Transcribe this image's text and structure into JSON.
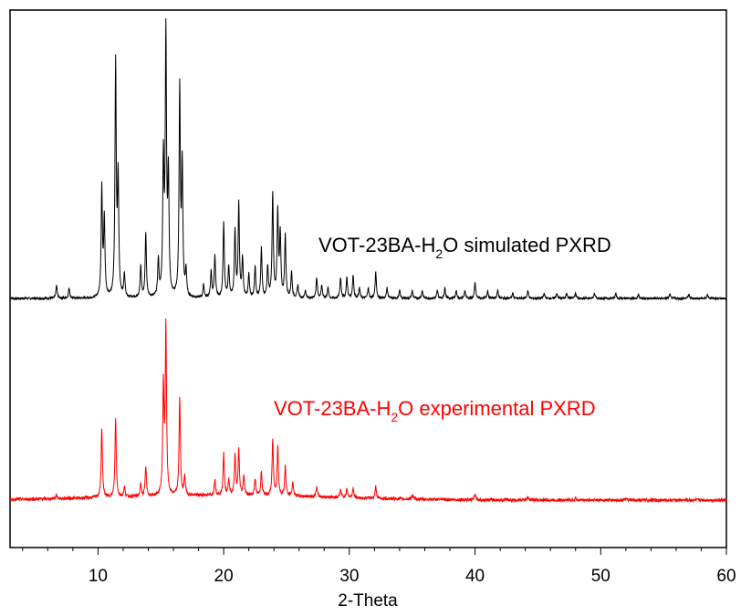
{
  "chart_data": {
    "type": "line",
    "xlabel": "2-Theta",
    "ylabel": "",
    "xlim": [
      3,
      60
    ],
    "x_ticks": [
      10,
      20,
      30,
      40,
      50,
      60
    ],
    "x_minor_step": 2,
    "y_ticks_shown": false,
    "grid": false,
    "legend": "none (series labelled directly on plot)",
    "series": [
      {
        "label_parts": {
          "pre": "VOT-23BA-H",
          "sub": "2",
          "post": "O simulated PXRD"
        },
        "color": "#000000",
        "baseline": 0.0,
        "noise": 0.004,
        "peaks": [
          [
            6.7,
            0.05
          ],
          [
            7.7,
            0.04
          ],
          [
            10.3,
            0.42
          ],
          [
            10.5,
            0.3
          ],
          [
            11.4,
            0.9
          ],
          [
            11.6,
            0.45
          ],
          [
            12.1,
            0.09
          ],
          [
            13.4,
            0.12
          ],
          [
            13.8,
            0.25
          ],
          [
            14.8,
            0.14
          ],
          [
            15.2,
            0.52
          ],
          [
            15.4,
            1.0
          ],
          [
            15.6,
            0.45
          ],
          [
            16.5,
            0.8
          ],
          [
            16.7,
            0.5
          ],
          [
            17.0,
            0.1
          ],
          [
            18.4,
            0.05
          ],
          [
            19.0,
            0.1
          ],
          [
            19.3,
            0.16
          ],
          [
            20.0,
            0.29
          ],
          [
            20.4,
            0.12
          ],
          [
            20.9,
            0.26
          ],
          [
            21.2,
            0.36
          ],
          [
            21.5,
            0.15
          ],
          [
            22.0,
            0.09
          ],
          [
            22.5,
            0.12
          ],
          [
            23.0,
            0.19
          ],
          [
            23.5,
            0.12
          ],
          [
            23.9,
            0.4
          ],
          [
            24.3,
            0.33
          ],
          [
            24.5,
            0.24
          ],
          [
            24.9,
            0.24
          ],
          [
            25.4,
            0.1
          ],
          [
            25.9,
            0.05
          ],
          [
            26.5,
            0.03
          ],
          [
            27.4,
            0.08
          ],
          [
            27.8,
            0.05
          ],
          [
            28.3,
            0.04
          ],
          [
            29.3,
            0.08
          ],
          [
            29.8,
            0.08
          ],
          [
            30.3,
            0.09
          ],
          [
            30.8,
            0.04
          ],
          [
            31.5,
            0.04
          ],
          [
            32.1,
            0.1
          ],
          [
            33.0,
            0.04
          ],
          [
            34.0,
            0.03
          ],
          [
            35.0,
            0.03
          ],
          [
            35.8,
            0.03
          ],
          [
            37.0,
            0.03
          ],
          [
            37.6,
            0.04
          ],
          [
            38.5,
            0.03
          ],
          [
            39.2,
            0.03
          ],
          [
            40.0,
            0.06
          ],
          [
            41.0,
            0.03
          ],
          [
            41.8,
            0.03
          ],
          [
            43.0,
            0.02
          ],
          [
            44.2,
            0.03
          ],
          [
            45.5,
            0.02
          ],
          [
            46.5,
            0.02
          ],
          [
            47.3,
            0.02
          ],
          [
            48.0,
            0.02
          ],
          [
            49.5,
            0.02
          ],
          [
            51.2,
            0.02
          ],
          [
            53.0,
            0.015
          ],
          [
            55.5,
            0.015
          ],
          [
            57.0,
            0.015
          ],
          [
            58.5,
            0.015
          ]
        ]
      },
      {
        "label_parts": {
          "pre": "VOT-23BA-H",
          "sub": "2",
          "post": "O experimental PXRD"
        },
        "color": "#ff0000",
        "baseline": 0.0,
        "noise": 0.008,
        "peaks": [
          [
            6.7,
            0.02
          ],
          [
            10.3,
            0.35
          ],
          [
            11.4,
            0.4
          ],
          [
            12.1,
            0.05
          ],
          [
            13.4,
            0.06
          ],
          [
            13.8,
            0.15
          ],
          [
            15.2,
            0.55
          ],
          [
            15.4,
            0.86
          ],
          [
            16.5,
            0.5
          ],
          [
            16.9,
            0.1
          ],
          [
            19.3,
            0.08
          ],
          [
            20.0,
            0.21
          ],
          [
            20.4,
            0.08
          ],
          [
            20.9,
            0.2
          ],
          [
            21.2,
            0.23
          ],
          [
            21.6,
            0.1
          ],
          [
            22.5,
            0.08
          ],
          [
            23.0,
            0.12
          ],
          [
            23.9,
            0.28
          ],
          [
            24.3,
            0.25
          ],
          [
            24.9,
            0.15
          ],
          [
            25.5,
            0.07
          ],
          [
            27.4,
            0.05
          ],
          [
            29.3,
            0.04
          ],
          [
            29.8,
            0.05
          ],
          [
            30.3,
            0.05
          ],
          [
            32.1,
            0.06
          ],
          [
            35.0,
            0.02
          ],
          [
            40.0,
            0.03
          ],
          [
            44.2,
            0.015
          ],
          [
            48.0,
            0.01
          ],
          [
            52.0,
            0.005
          ]
        ],
        "hump": {
          "center": 20.0,
          "width": 12,
          "height": 0.025
        }
      }
    ]
  }
}
